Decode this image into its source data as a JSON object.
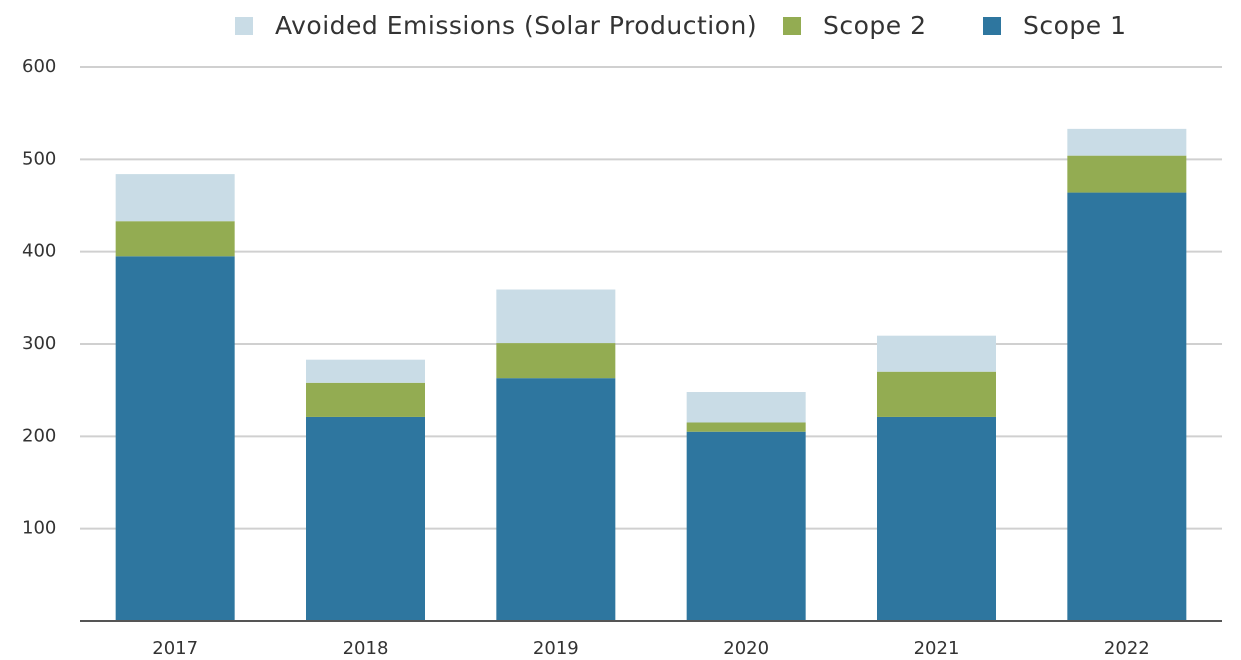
{
  "chart_data": {
    "type": "stacked_bar",
    "categories": [
      "2017",
      "2018",
      "2019",
      "2020",
      "2021",
      "2022"
    ],
    "series": [
      {
        "name": "Scope 1",
        "color": "#2e769f",
        "values": [
          395,
          221,
          263,
          205,
          221,
          464
        ]
      },
      {
        "name": "Scope 2",
        "color": "#93ac52",
        "values": [
          38,
          37,
          38,
          10,
          49,
          40
        ]
      },
      {
        "name": "Avoided Emissions (Solar Production)",
        "color": "#c9dce6",
        "values": [
          51,
          25,
          58,
          33,
          39,
          29
        ]
      }
    ],
    "ylim": [
      0,
      600
    ],
    "yticks": [
      100,
      200,
      300,
      400,
      500,
      600
    ],
    "grid": true,
    "legend": "top"
  }
}
